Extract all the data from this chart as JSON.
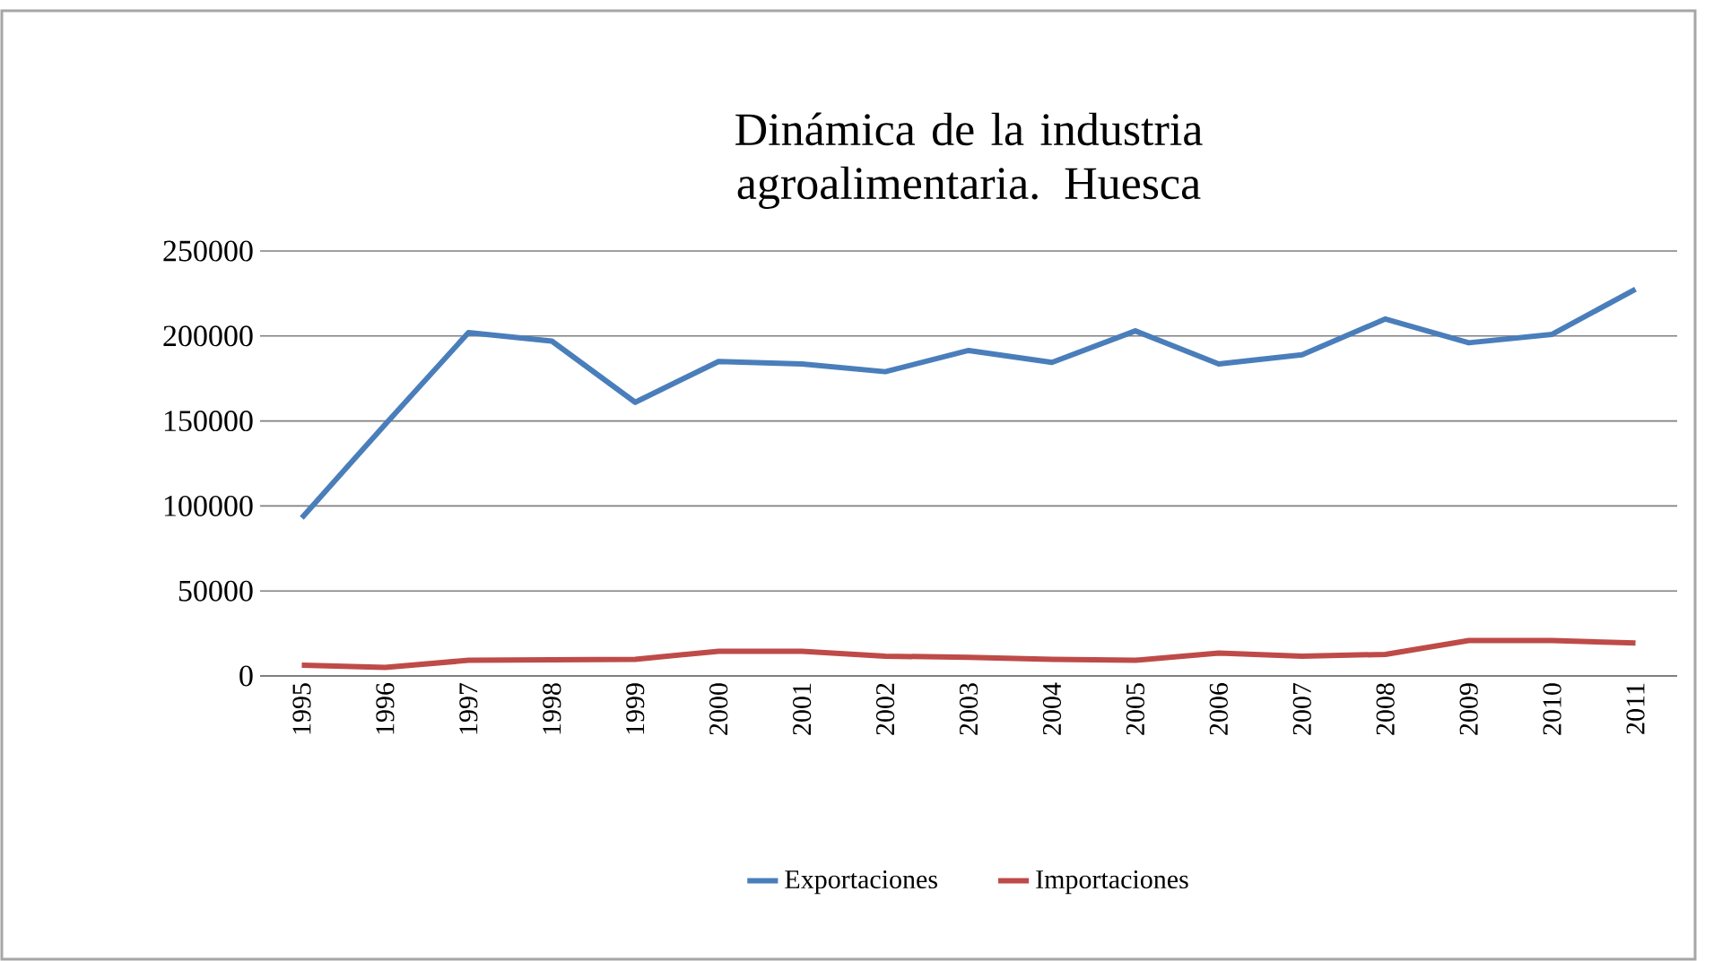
{
  "chart_data": {
    "type": "line",
    "title": "Dinámica de la industria agroalimentaria. Huesca",
    "categories": [
      "1995",
      "1996",
      "1997",
      "1998",
      "1999",
      "2000",
      "2001",
      "2002",
      "2003",
      "2004",
      "2005",
      "2006",
      "2007",
      "2008",
      "2009",
      "2010",
      "2011"
    ],
    "series": [
      {
        "name": "Exportaciones",
        "color": "#4a7ebb",
        "values": [
          93000,
          148000,
          202000,
          197000,
          161000,
          185000,
          183500,
          179000,
          191500,
          184500,
          203000,
          183500,
          189000,
          210000,
          196000,
          201000,
          227500
        ]
      },
      {
        "name": "Importaciones",
        "color": "#be4b48",
        "values": [
          6300,
          5000,
          9200,
          9500,
          9800,
          14500,
          14500,
          11600,
          11000,
          9800,
          9200,
          13400,
          11600,
          12700,
          20800,
          20800,
          19400
        ]
      }
    ],
    "ylim": [
      0,
      250000
    ],
    "yticks": [
      0,
      50000,
      100000,
      150000,
      200000,
      250000
    ],
    "grid": "y",
    "legend": "bottom",
    "marker": "none",
    "line_style": "solid"
  }
}
